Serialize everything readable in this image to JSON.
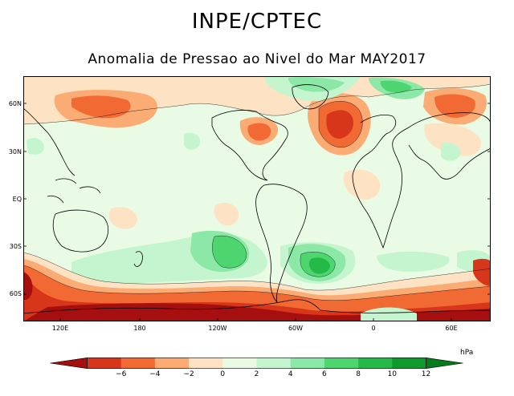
{
  "header": {
    "title": "INPE/CPTEC",
    "subtitle": "Anomalia de Pressao ao Nivel do Mar MAY2017"
  },
  "map": {
    "latitude_labels": [
      "60N",
      "30N",
      "EQ",
      "30S",
      "60S"
    ],
    "longitude_labels": [
      "120E",
      "180",
      "120W",
      "60W",
      "0",
      "60E"
    ]
  },
  "legend": {
    "unit": "hPa",
    "ticks": [
      "−6",
      "−4",
      "−2",
      "0",
      "2",
      "4",
      "6",
      "8",
      "10",
      "12"
    ],
    "colors": [
      "#a50f0f",
      "#d8361a",
      "#f26a33",
      "#fbab74",
      "#fde3c3",
      "#e9fbe4",
      "#c4f5cf",
      "#8ce8a6",
      "#4fd56f",
      "#25b94a",
      "#0e9a2e",
      "#057d1f"
    ]
  },
  "colors": {
    "background": "#ffffff",
    "neutral_fill": "#e9fbe4"
  }
}
